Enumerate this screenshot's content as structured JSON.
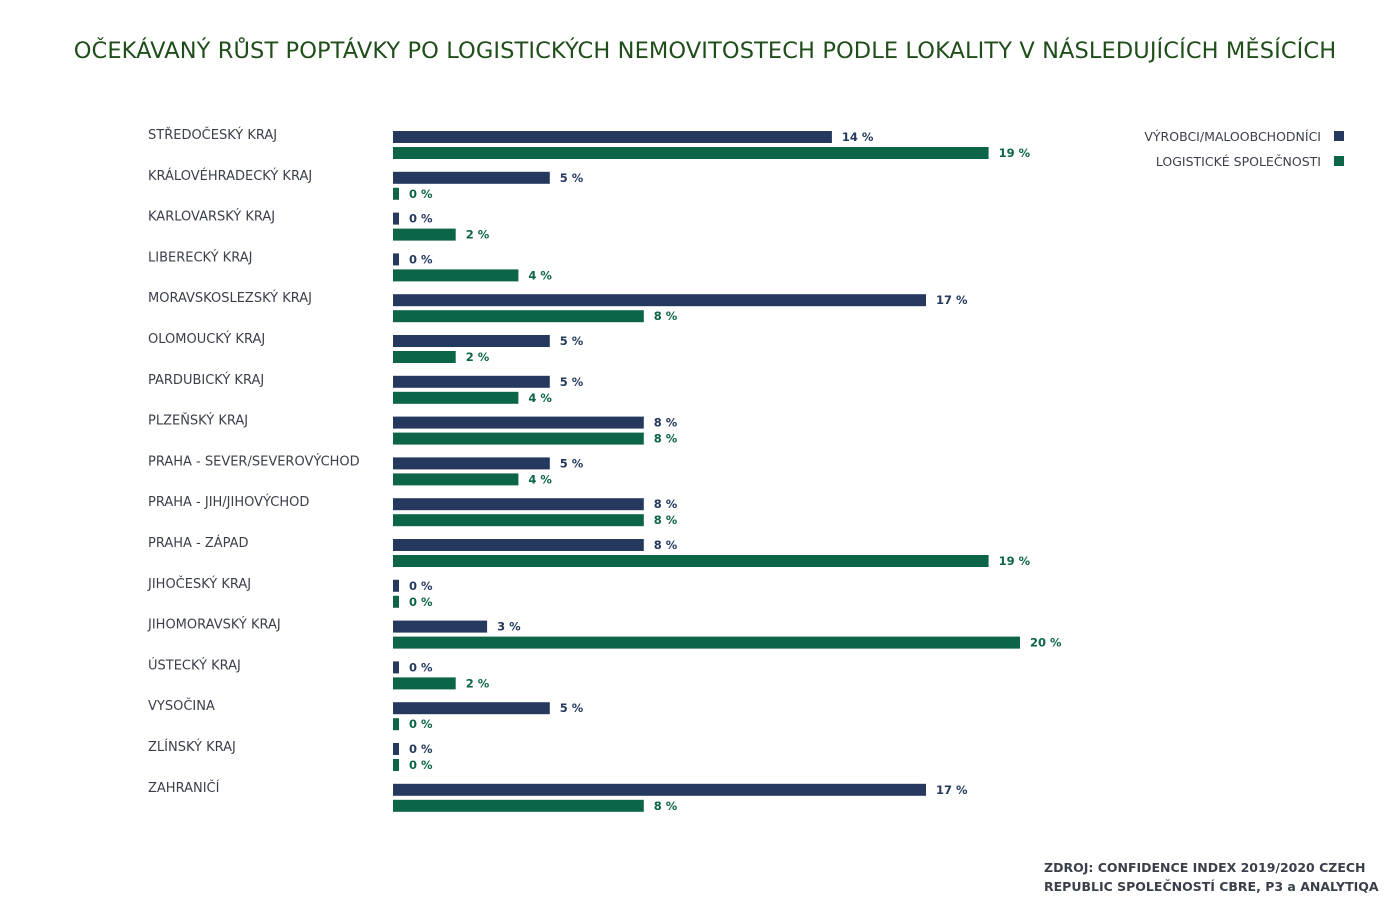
{
  "title": "OČEKÁVANÝ RŮST POPTÁVKY PO LOGISTICKÝCH NEMOVITOSTECH PODLE LOKALITY V NÁSLEDUJÍCÍCH MĚSÍCÍCH",
  "source": {
    "line1": "ZDROJ: CONFIDENCE INDEX 2019/2020 CZECH",
    "line2": "REPUBLIC SPOLEČNOSTÍ CBRE, P3 a ANALYTIQA"
  },
  "colors": {
    "series1": "#25395e",
    "series2": "#0c6548"
  },
  "chart_data": {
    "type": "bar",
    "orientation": "horizontal",
    "title": "OČEKÁVANÝ RŮST POPTÁVKY PO LOGISTICKÝCH NEMOVITOSTECH PODLE LOKALITY V NÁSLEDUJÍCÍCH MĚSÍCÍCH",
    "legend_position": "top-right",
    "grid": false,
    "xlim": [
      0,
      20
    ],
    "unit": "%",
    "categories": [
      "STŘEDOČESKÝ KRAJ",
      "KRÁLOVÉHRADECKÝ KRAJ",
      "KARLOVARSKÝ KRAJ",
      "LIBERECKÝ KRAJ",
      "MORAVSKOSLEZSKÝ KRAJ",
      "OLOMOUCKÝ KRAJ",
      "PARDUBICKÝ KRAJ",
      "PLZEŇSKÝ KRAJ",
      "PRAHA - SEVER/SEVEROVÝCHOD",
      "PRAHA - JIH/JIHOVÝCHOD",
      "PRAHA - ZÁPAD",
      "JIHOČESKÝ KRAJ",
      "JIHOMORAVSKÝ KRAJ",
      "ÚSTECKÝ KRAJ",
      "VYSOČINA",
      "ZLÍNSKÝ KRAJ",
      "ZAHRANIČÍ"
    ],
    "series": [
      {
        "name": "VÝROBCI/MALOOBCHODNÍCI",
        "values": [
          14,
          5,
          0,
          0,
          17,
          5,
          5,
          8,
          5,
          8,
          8,
          0,
          3,
          0,
          5,
          0,
          17
        ],
        "labels": [
          "14 %",
          "5 %",
          "0 %",
          "0 %",
          "17 %",
          "5 %",
          "5 %",
          "8 %",
          "5 %",
          "8 %",
          "8 %",
          "0 %",
          "3 %",
          "0 %",
          "5 %",
          "0 %",
          "17 %"
        ]
      },
      {
        "name": "LOGISTICKÉ SPOLEČNOSTI",
        "values": [
          19,
          0,
          2,
          4,
          8,
          2,
          4,
          8,
          4,
          8,
          19,
          0,
          20,
          2,
          0,
          0,
          8
        ],
        "labels": [
          "19 %",
          "0 %",
          "2 %",
          "4 %",
          "8 %",
          "2 %",
          "4 %",
          "8 %",
          "4 %",
          "8 %",
          "19 %",
          "0 %",
          "20 %",
          "2 %",
          "0 %",
          "0 %",
          "8 %"
        ]
      }
    ]
  }
}
